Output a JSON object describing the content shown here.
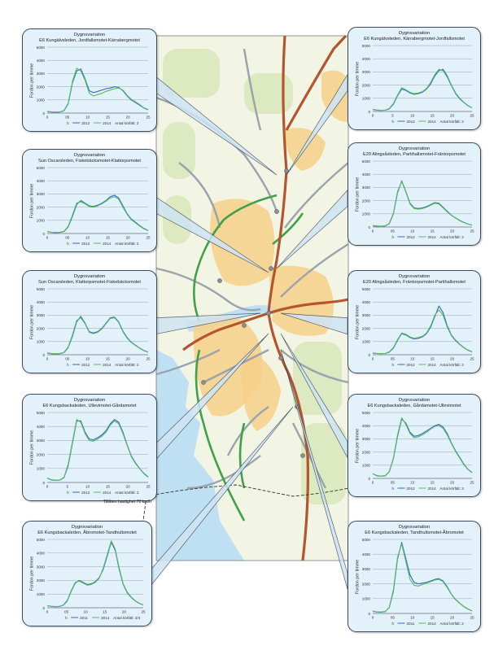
{
  "colors": {
    "water": "#bfe0f2",
    "land": "#f2f4e4",
    "urban": "#f7d08a",
    "forest": "#d6e6b8",
    "motorway": "#b5552e",
    "road": "#9aa3ad",
    "green_route": "#3fa14a",
    "panel_bg": "#e3f1fb",
    "series_2012": "#2a6cc4",
    "series_2014": "#5cb85c"
  },
  "icons": {
    "boundary": "dashed-boundary-line"
  },
  "map_note": "Tillåten hastighet 70 km/h",
  "chart_data": [
    {
      "type": "line",
      "title": [
        "Dygnsvariation",
        "E6 Kungälvsleden, Jordfallsmotet-Kärrabergmotet"
      ],
      "ylabel": "Fordon per timme",
      "ylim": [
        0,
        5000
      ],
      "yticks": [
        "0",
        "1000",
        "2000",
        "3000",
        "4000",
        "5000"
      ],
      "xticks": [
        "0",
        "05",
        "10",
        "15",
        "20",
        "25"
      ],
      "legend": [
        "h",
        "2012",
        "2014",
        "Antal körfält: 2"
      ],
      "x": [
        0,
        1,
        2,
        3,
        4,
        5,
        6,
        7,
        8,
        9,
        10,
        11,
        12,
        13,
        14,
        15,
        16,
        17,
        18,
        19,
        20,
        21,
        22,
        23,
        24
      ],
      "series": [
        {
          "name": "2012",
          "values": [
            120,
            80,
            70,
            80,
            180,
            700,
            2300,
            3200,
            3350,
            2600,
            1700,
            1550,
            1650,
            1750,
            1850,
            1900,
            2000,
            1950,
            1700,
            1300,
            1000,
            800,
            600,
            380,
            250
          ]
        },
        {
          "name": "2014",
          "values": [
            130,
            90,
            80,
            90,
            200,
            750,
            2400,
            3400,
            3200,
            2500,
            1500,
            1300,
            1400,
            1500,
            1650,
            1750,
            1850,
            1900,
            1750,
            1350,
            1050,
            850,
            650,
            400,
            280
          ]
        }
      ]
    },
    {
      "type": "line",
      "title": [
        "Dygnsvariation",
        "E6 Kungälvsleden, Kärrabergmotet-Jordfallsmotet"
      ],
      "ylabel": "Fordon per timme",
      "ylim": [
        0,
        5000
      ],
      "yticks": [
        "0",
        "1000",
        "2000",
        "3000",
        "4000",
        "5000"
      ],
      "xticks": [
        "0",
        "5",
        "10",
        "15",
        "20",
        "25"
      ],
      "legend": [
        "h",
        "2012",
        "2014",
        "Antal körfält: 2"
      ],
      "x": [
        0,
        1,
        2,
        3,
        4,
        5,
        6,
        7,
        8,
        9,
        10,
        11,
        12,
        13,
        14,
        15,
        16,
        17,
        18,
        19,
        20,
        21,
        22,
        23,
        24
      ],
      "series": [
        {
          "name": "2012",
          "values": [
            150,
            100,
            80,
            90,
            200,
            550,
            1200,
            1700,
            1600,
            1400,
            1300,
            1350,
            1450,
            1700,
            2100,
            2700,
            3100,
            3200,
            2700,
            2000,
            1400,
            1000,
            700,
            450,
            280
          ]
        },
        {
          "name": "2014",
          "values": [
            160,
            110,
            90,
            100,
            220,
            600,
            1250,
            1800,
            1650,
            1450,
            1350,
            1400,
            1500,
            1750,
            2200,
            2800,
            3200,
            3100,
            2600,
            1950,
            1350,
            950,
            680,
            430,
            270
          ]
        }
      ]
    },
    {
      "type": "line",
      "title": [
        "Dygnsvariation",
        "Sun Oscarsleden, Fiskebäcksmotet-Klattorpsmotet"
      ],
      "ylabel": "Fordon per timme",
      "ylim": [
        0,
        5000
      ],
      "yticks": [
        "0",
        "1000",
        "2000",
        "3000",
        "4000",
        "5000"
      ],
      "xticks": [
        "0",
        "05",
        "10",
        "15",
        "20",
        "25"
      ],
      "legend": [
        "h",
        "2012",
        "2014",
        "Antal körfält: 2"
      ],
      "x": [
        0,
        1,
        2,
        3,
        4,
        5,
        6,
        7,
        8,
        9,
        10,
        11,
        12,
        13,
        14,
        15,
        16,
        17,
        18,
        19,
        20,
        21,
        22,
        23,
        24
      ],
      "series": [
        {
          "name": "2012",
          "values": [
            150,
            90,
            70,
            80,
            150,
            500,
            1300,
            2200,
            2500,
            2300,
            2100,
            2050,
            2150,
            2300,
            2500,
            2800,
            2900,
            2700,
            2100,
            1500,
            1100,
            850,
            600,
            380,
            220
          ]
        },
        {
          "name": "2014",
          "values": [
            160,
            100,
            80,
            90,
            170,
            550,
            1400,
            2300,
            2400,
            2250,
            2050,
            2000,
            2100,
            2250,
            2450,
            2700,
            2800,
            2600,
            2000,
            1450,
            1050,
            800,
            560,
            350,
            210
          ]
        }
      ]
    },
    {
      "type": "line",
      "title": [
        "Dygnsvariation",
        "E20 Alingsåsleden, Partihallsmotet-Fräntorpsmotet"
      ],
      "ylabel": "Fordon per timme",
      "ylim": [
        0,
        5000
      ],
      "yticks": [
        "0",
        "1000",
        "2000",
        "3000",
        "4000",
        "5000"
      ],
      "xticks": [
        "0",
        "05",
        "10",
        "15",
        "20",
        "25"
      ],
      "legend": [
        "h",
        "2012",
        "2014",
        "Antal körfält: 2"
      ],
      "x": [
        0,
        1,
        2,
        3,
        4,
        5,
        6,
        7,
        8,
        9,
        10,
        11,
        12,
        13,
        14,
        15,
        16,
        17,
        18,
        19,
        20,
        21,
        22,
        23,
        24
      ],
      "series": [
        {
          "name": "2012",
          "values": [
            100,
            70,
            60,
            80,
            250,
            1000,
            2600,
            3500,
            2700,
            1800,
            1450,
            1400,
            1450,
            1550,
            1700,
            1850,
            1800,
            1500,
            1200,
            900,
            700,
            500,
            350,
            230,
            150
          ]
        },
        {
          "name": "2014",
          "values": [
            110,
            80,
            70,
            90,
            270,
            1050,
            2700,
            3450,
            2650,
            1750,
            1400,
            1350,
            1400,
            1500,
            1650,
            1800,
            1750,
            1450,
            1150,
            880,
            680,
            480,
            340,
            220,
            140
          ]
        }
      ]
    },
    {
      "type": "line",
      "title": [
        "Dygnsvariation",
        "Sun Oscarsleden, Klattorpsmotet-Fiskebäcksmotet"
      ],
      "ylabel": "Fordon per timme",
      "ylim": [
        0,
        5000
      ],
      "yticks": [
        "0",
        "1000",
        "2000",
        "3000",
        "4000",
        "5000"
      ],
      "xticks": [
        "0",
        "05",
        "10",
        "15",
        "20",
        "25"
      ],
      "legend": [
        "h",
        "2012",
        "2014",
        "Antal körfält: 2"
      ],
      "x": [
        0,
        1,
        2,
        3,
        4,
        5,
        6,
        7,
        8,
        9,
        10,
        11,
        12,
        13,
        14,
        15,
        16,
        17,
        18,
        19,
        20,
        21,
        22,
        23,
        24
      ],
      "series": [
        {
          "name": "2012",
          "values": [
            130,
            80,
            70,
            80,
            160,
            550,
            1400,
            2500,
            2900,
            2400,
            1750,
            1650,
            1750,
            2000,
            2400,
            2800,
            2850,
            2500,
            1800,
            1300,
            950,
            720,
            500,
            320,
            200
          ]
        },
        {
          "name": "2014",
          "values": [
            140,
            90,
            80,
            90,
            180,
            600,
            1500,
            2600,
            2800,
            2350,
            1700,
            1600,
            1700,
            1950,
            2350,
            2750,
            2800,
            2450,
            1750,
            1250,
            920,
            700,
            480,
            300,
            190
          ]
        }
      ]
    },
    {
      "type": "line",
      "title": [
        "Dygnsvariation",
        "E20 Alingsåsleden, Fräntorpsmotet-Partihallsmotet"
      ],
      "ylabel": "Fordon per timme",
      "ylim": [
        0,
        5000
      ],
      "yticks": [
        "0",
        "1000",
        "2000",
        "3000",
        "4000",
        "5000"
      ],
      "xticks": [
        "0",
        "05",
        "10",
        "15",
        "20",
        "25"
      ],
      "legend": [
        "h",
        "2012",
        "2014",
        "Antal körfält: 2"
      ],
      "x": [
        0,
        1,
        2,
        3,
        4,
        5,
        6,
        7,
        8,
        9,
        10,
        11,
        12,
        13,
        14,
        15,
        16,
        17,
        18,
        19,
        20,
        21,
        22,
        23,
        24
      ],
      "series": [
        {
          "name": "2012",
          "values": [
            130,
            90,
            80,
            90,
            200,
            500,
            1100,
            1600,
            1500,
            1300,
            1200,
            1250,
            1350,
            1600,
            2100,
            2900,
            3700,
            3200,
            2200,
            1500,
            1100,
            800,
            550,
            350,
            220
          ]
        },
        {
          "name": "2014",
          "values": [
            140,
            100,
            90,
            100,
            220,
            550,
            1150,
            1650,
            1550,
            1350,
            1250,
            1300,
            1400,
            1650,
            2200,
            3000,
            3400,
            3000,
            2100,
            1450,
            1050,
            780,
            530,
            340,
            210
          ]
        }
      ]
    },
    {
      "type": "line",
      "title": [
        "Dygnsvariation",
        "E6 Kungsbackaleden, Ullevimotet-Gårdamotet"
      ],
      "ylabel": "Fordon per timme",
      "ylim": [
        0,
        5000
      ],
      "yticks": [
        "0",
        "1000",
        "2000",
        "3000",
        "4000",
        "5000"
      ],
      "xticks": [
        "0",
        "5",
        "10",
        "15",
        "20",
        "25"
      ],
      "legend": [
        "h",
        "2012",
        "2014",
        "Antal körfält: 3"
      ],
      "x": [
        0,
        1,
        2,
        3,
        4,
        5,
        6,
        7,
        8,
        9,
        10,
        11,
        12,
        13,
        14,
        15,
        16,
        17,
        18,
        19,
        20,
        21,
        22,
        23,
        24
      ],
      "series": [
        {
          "name": "2012",
          "values": [
            300,
            180,
            150,
            170,
            350,
            1200,
            2800,
            4400,
            4400,
            3600,
            3100,
            3050,
            3200,
            3400,
            3700,
            4200,
            4500,
            4300,
            3600,
            2700,
            1900,
            1400,
            1000,
            650,
            400
          ]
        },
        {
          "name": "2014",
          "values": [
            320,
            200,
            160,
            180,
            380,
            1300,
            2900,
            4500,
            4300,
            3500,
            3000,
            2950,
            3100,
            3300,
            3600,
            4100,
            4400,
            4200,
            3500,
            2650,
            1850,
            1350,
            980,
            620,
            380
          ]
        }
      ]
    },
    {
      "type": "line",
      "title": [
        "Dygnsvariation",
        "E6 Kungsbackaleden, Gårdamotet-Ullevimotet"
      ],
      "ylabel": "Fordon per timme",
      "ylim": [
        0,
        5000
      ],
      "yticks": [
        "0",
        "1000",
        "2000",
        "3000",
        "4000",
        "5000"
      ],
      "xticks": [
        "0",
        "05",
        "10",
        "15",
        "20",
        "25"
      ],
      "legend": [
        "h",
        "2012",
        "2014",
        "Antal körfält: 3"
      ],
      "x": [
        0,
        1,
        2,
        3,
        4,
        5,
        6,
        7,
        8,
        9,
        10,
        11,
        12,
        13,
        14,
        15,
        16,
        17,
        18,
        19,
        20,
        21,
        22,
        23,
        24
      ],
      "series": [
        {
          "name": "2012",
          "values": [
            350,
            200,
            170,
            200,
            500,
            1500,
            3200,
            4500,
            4200,
            3500,
            3200,
            3250,
            3400,
            3600,
            3800,
            4000,
            4100,
            3900,
            3400,
            2700,
            2100,
            1600,
            1100,
            700,
            450
          ]
        },
        {
          "name": "2014",
          "values": [
            360,
            220,
            180,
            210,
            520,
            1550,
            3300,
            4600,
            4100,
            3400,
            3100,
            3150,
            3300,
            3500,
            3750,
            3950,
            4000,
            3800,
            3300,
            2650,
            2050,
            1550,
            1050,
            680,
            430
          ]
        }
      ]
    },
    {
      "type": "line",
      "title": [
        "Dygnsvariation",
        "E6 Kungsbackaleden, Åbromotet-Tandhultsmotet"
      ],
      "ylabel": "Fordon per timme",
      "ylim": [
        0,
        5000
      ],
      "yticks": [
        "0",
        "1000",
        "2000",
        "3000",
        "4000",
        "5000"
      ],
      "xticks": [
        "0",
        "05",
        "10",
        "15",
        "20",
        "25"
      ],
      "legend": [
        "h",
        "2011",
        "2014",
        "Antal körfält: 2/4"
      ],
      "x": [
        0,
        1,
        2,
        3,
        4,
        5,
        6,
        7,
        8,
        9,
        10,
        11,
        12,
        13,
        14,
        15,
        16,
        17,
        18,
        19,
        20,
        21,
        22,
        23,
        24
      ],
      "series": [
        {
          "name": "2011",
          "values": [
            150,
            100,
            80,
            90,
            180,
            500,
            1200,
            1800,
            2000,
            1850,
            1700,
            1750,
            1900,
            2200,
            2800,
            3800,
            4800,
            4200,
            2800,
            1700,
            1100,
            750,
            500,
            320,
            200
          ]
        },
        {
          "name": "2014",
          "values": [
            160,
            110,
            90,
            100,
            200,
            550,
            1250,
            1850,
            1950,
            1800,
            1650,
            1700,
            1850,
            2150,
            2900,
            3900,
            4900,
            4300,
            2900,
            1750,
            1150,
            780,
            520,
            330,
            210
          ]
        }
      ]
    },
    {
      "type": "line",
      "title": [
        "Dygnsvariation",
        "E6 Kungsbackaleden, Tandhultsmotet-Åbromotet"
      ],
      "ylabel": "Fordon per timme",
      "ylim": [
        0,
        5000
      ],
      "yticks": [
        "0",
        "1000",
        "2000",
        "3000",
        "4000",
        "5000"
      ],
      "xticks": [
        "0",
        "05",
        "10",
        "15",
        "20",
        "25"
      ],
      "legend": [
        "h",
        "2011",
        "2014",
        "Antal körfält: 2"
      ],
      "x": [
        0,
        1,
        2,
        3,
        4,
        5,
        6,
        7,
        8,
        9,
        10,
        11,
        12,
        13,
        14,
        15,
        16,
        17,
        18,
        19,
        20,
        21,
        22,
        23,
        24
      ],
      "series": [
        {
          "name": "2011",
          "values": [
            150,
            100,
            90,
            120,
            400,
            1500,
            3700,
            4800,
            3700,
            2600,
            2100,
            2000,
            2050,
            2100,
            2200,
            2300,
            2350,
            2200,
            1800,
            1300,
            950,
            700,
            480,
            300,
            180
          ]
        },
        {
          "name": "2014",
          "values": [
            160,
            110,
            100,
            130,
            420,
            1600,
            3800,
            4700,
            3500,
            2300,
            1900,
            1850,
            1950,
            2050,
            2150,
            2250,
            2300,
            2150,
            1750,
            1280,
            930,
            680,
            460,
            290,
            170
          ]
        }
      ]
    }
  ]
}
